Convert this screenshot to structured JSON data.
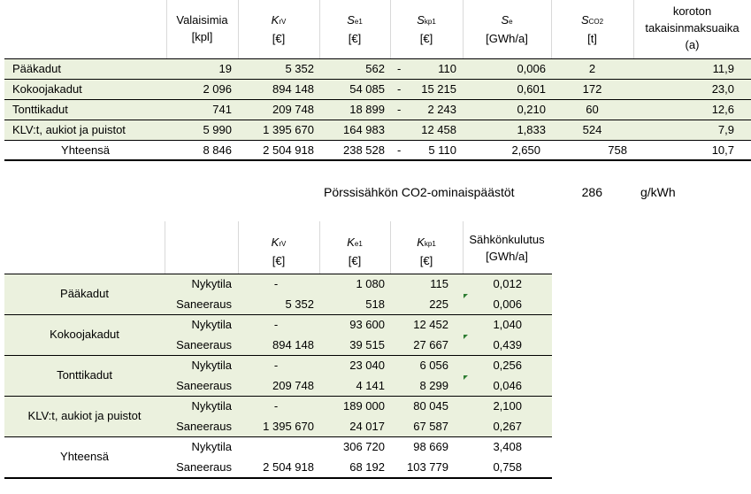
{
  "table1": {
    "headers": [
      {
        "line1": "Valaisimia",
        "line2": "[kpl]"
      },
      {
        "sym": "K",
        "sub": "rV",
        "unit": "[€]"
      },
      {
        "sym": "S",
        "sub": "e1",
        "unit": "[€]"
      },
      {
        "sym": "S",
        "sub": "kp1",
        "unit": "[€]"
      },
      {
        "sym": "S",
        "sub": "e",
        "unit": "[GWh/a]"
      },
      {
        "sym": "S",
        "sub": "CO2",
        "unit": "[t]"
      },
      {
        "line1": "koroton",
        "line2": "takaisinmaksuaika",
        "line3": "(a)"
      }
    ],
    "rows": [
      {
        "name": "Pääkadut",
        "valaisimia": "19",
        "krv": "5 352",
        "se1": "562",
        "sign": "-",
        "skp1": "110",
        "se": "0,006",
        "sco2": "2",
        "aika": "11,9"
      },
      {
        "name": "Kokoojakadut",
        "valaisimia": "2 096",
        "krv": "894 148",
        "se1": "54 085",
        "sign": "-",
        "skp1": "15 215",
        "se": "0,601",
        "sco2": "172",
        "aika": "23,0"
      },
      {
        "name": "Tonttikadut",
        "valaisimia": "741",
        "krv": "209 748",
        "se1": "18 899",
        "sign": "-",
        "skp1": "2 243",
        "se": "0,210",
        "sco2": "60",
        "aika": "12,6"
      },
      {
        "name": "KLV:t, aukiot ja puistot",
        "valaisimia": "5 990",
        "krv": "1 395 670",
        "se1": "164 983",
        "sign": "",
        "skp1": "12 458",
        "se": "1,833",
        "sco2": "524",
        "aika": "7,9"
      }
    ],
    "total": {
      "name": "Yhteensä",
      "valaisimia": "8 846",
      "krv": "2 504 918",
      "se1": "238 528",
      "sign": "-",
      "skp1": "5 110",
      "se": "2,650",
      "sco2": "758",
      "aika": "10,7"
    }
  },
  "co2": {
    "label": "Pörssisähkön CO2-ominaispäästöt",
    "value": "286",
    "unit": "g/kWh"
  },
  "table2": {
    "headers": [
      {
        "sym": "K",
        "sub": "rV",
        "unit": "[€]"
      },
      {
        "sym": "K",
        "sub": "e1",
        "unit": "[€]"
      },
      {
        "sym": "K",
        "sub": "kp1",
        "unit": "[€]"
      },
      {
        "line1": "Sähkönkulutus",
        "line2": "[GWh/a]"
      }
    ],
    "groups": [
      {
        "name": "Pääkadut",
        "rows": [
          {
            "state": "Nykytila",
            "krv": "-",
            "ke1": "1 080",
            "kkp1": "115",
            "gwh": "0,012"
          },
          {
            "state": "Saneeraus",
            "krv": "5 352",
            "ke1": "518",
            "kkp1": "225",
            "gwh": "0,006"
          }
        ]
      },
      {
        "name": "Kokoojakadut",
        "rows": [
          {
            "state": "Nykytila",
            "krv": "-",
            "ke1": "93 600",
            "kkp1": "12 452",
            "gwh": "1,040"
          },
          {
            "state": "Saneeraus",
            "krv": "894 148",
            "ke1": "39 515",
            "kkp1": "27 667",
            "gwh": "0,439"
          }
        ]
      },
      {
        "name": "Tonttikadut",
        "rows": [
          {
            "state": "Nykytila",
            "krv": "-",
            "ke1": "23 040",
            "kkp1": "6 056",
            "gwh": "0,256"
          },
          {
            "state": "Saneeraus",
            "krv": "209 748",
            "ke1": "4 141",
            "kkp1": "8 299",
            "gwh": "0,046"
          }
        ]
      },
      {
        "name": "KLV:t, aukiot ja puistot",
        "rows": [
          {
            "state": "Nykytila",
            "krv": "-",
            "ke1": "189 000",
            "kkp1": "80 045",
            "gwh": "2,100"
          },
          {
            "state": "Saneeraus",
            "krv": "1 395 670",
            "ke1": "24 017",
            "kkp1": "67 587",
            "gwh": "0,267"
          }
        ]
      },
      {
        "name": "Yhteensä",
        "rows": [
          {
            "state": "Nykytila",
            "krv": "",
            "ke1": "306 720",
            "kkp1": "98 669",
            "gwh": "3,408"
          },
          {
            "state": "Saneeraus",
            "krv": "2 504 918",
            "ke1": "68 192",
            "kkp1": "103 779",
            "gwh": "0,758"
          }
        ]
      }
    ]
  }
}
